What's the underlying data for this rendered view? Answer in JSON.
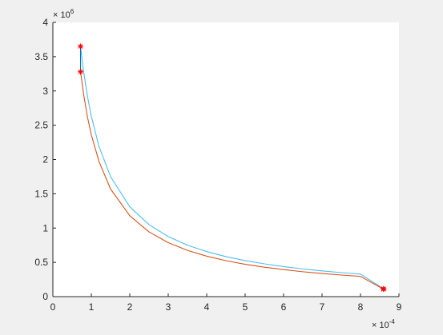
{
  "chart_data": {
    "type": "line",
    "title": "",
    "xlabel": "",
    "ylabel": "",
    "xlim": [
      0,
      9
    ],
    "ylim": [
      0,
      4
    ],
    "x_ticks": [
      0,
      1,
      2,
      3,
      4,
      5,
      6,
      7,
      8,
      9
    ],
    "x_tick_labels": [
      "0",
      "1",
      "2",
      "3",
      "4",
      "5",
      "6",
      "7",
      "8",
      "9"
    ],
    "y_ticks": [
      0,
      0.5,
      1,
      1.5,
      2,
      2.5,
      3,
      3.5,
      4
    ],
    "y_tick_labels": [
      "0",
      "0.5",
      "1",
      "1.5",
      "2",
      "2.5",
      "3",
      "3.5",
      "4"
    ],
    "x_exponent_prefix": "× 10",
    "x_exponent_power": "-4",
    "y_exponent_prefix": "× 10",
    "y_exponent_power": "6",
    "grid": false,
    "series": [
      {
        "color": "#4DBEEE",
        "x": [
          0.72,
          0.8,
          0.9,
          1.0,
          1.2,
          1.5,
          2.0,
          2.5,
          3.0,
          3.5,
          4.0,
          4.5,
          5.0,
          5.5,
          6.0,
          6.5,
          7.0,
          7.5,
          8.0,
          8.6
        ],
        "y": [
          3.65,
          3.28,
          2.92,
          2.63,
          2.19,
          1.75,
          1.31,
          1.05,
          0.876,
          0.751,
          0.657,
          0.584,
          0.526,
          0.478,
          0.438,
          0.404,
          0.375,
          0.35,
          0.329,
          0.115
        ]
      },
      {
        "color": "#D95319",
        "x": [
          0.72,
          0.8,
          0.9,
          1.0,
          1.2,
          1.5,
          2.0,
          2.5,
          3.0,
          3.5,
          4.0,
          4.5,
          5.0,
          5.5,
          6.0,
          6.5,
          7.0,
          7.5,
          8.0,
          8.6
        ],
        "y": [
          3.28,
          2.95,
          2.62,
          2.36,
          1.97,
          1.57,
          1.18,
          0.944,
          0.787,
          0.675,
          0.59,
          0.525,
          0.472,
          0.429,
          0.394,
          0.363,
          0.337,
          0.315,
          0.295,
          0.108
        ]
      },
      {
        "color": "#0072BD",
        "x": [
          0.72,
          0.72
        ],
        "y": [
          3.65,
          3.28
        ]
      }
    ],
    "markers": {
      "color": "#FF0000",
      "symbol": "*",
      "points": [
        {
          "x": 0.72,
          "y": 3.65
        },
        {
          "x": 0.72,
          "y": 3.28
        },
        {
          "x": 8.6,
          "y": 0.115
        },
        {
          "x": 8.6,
          "y": 0.108
        }
      ]
    }
  }
}
